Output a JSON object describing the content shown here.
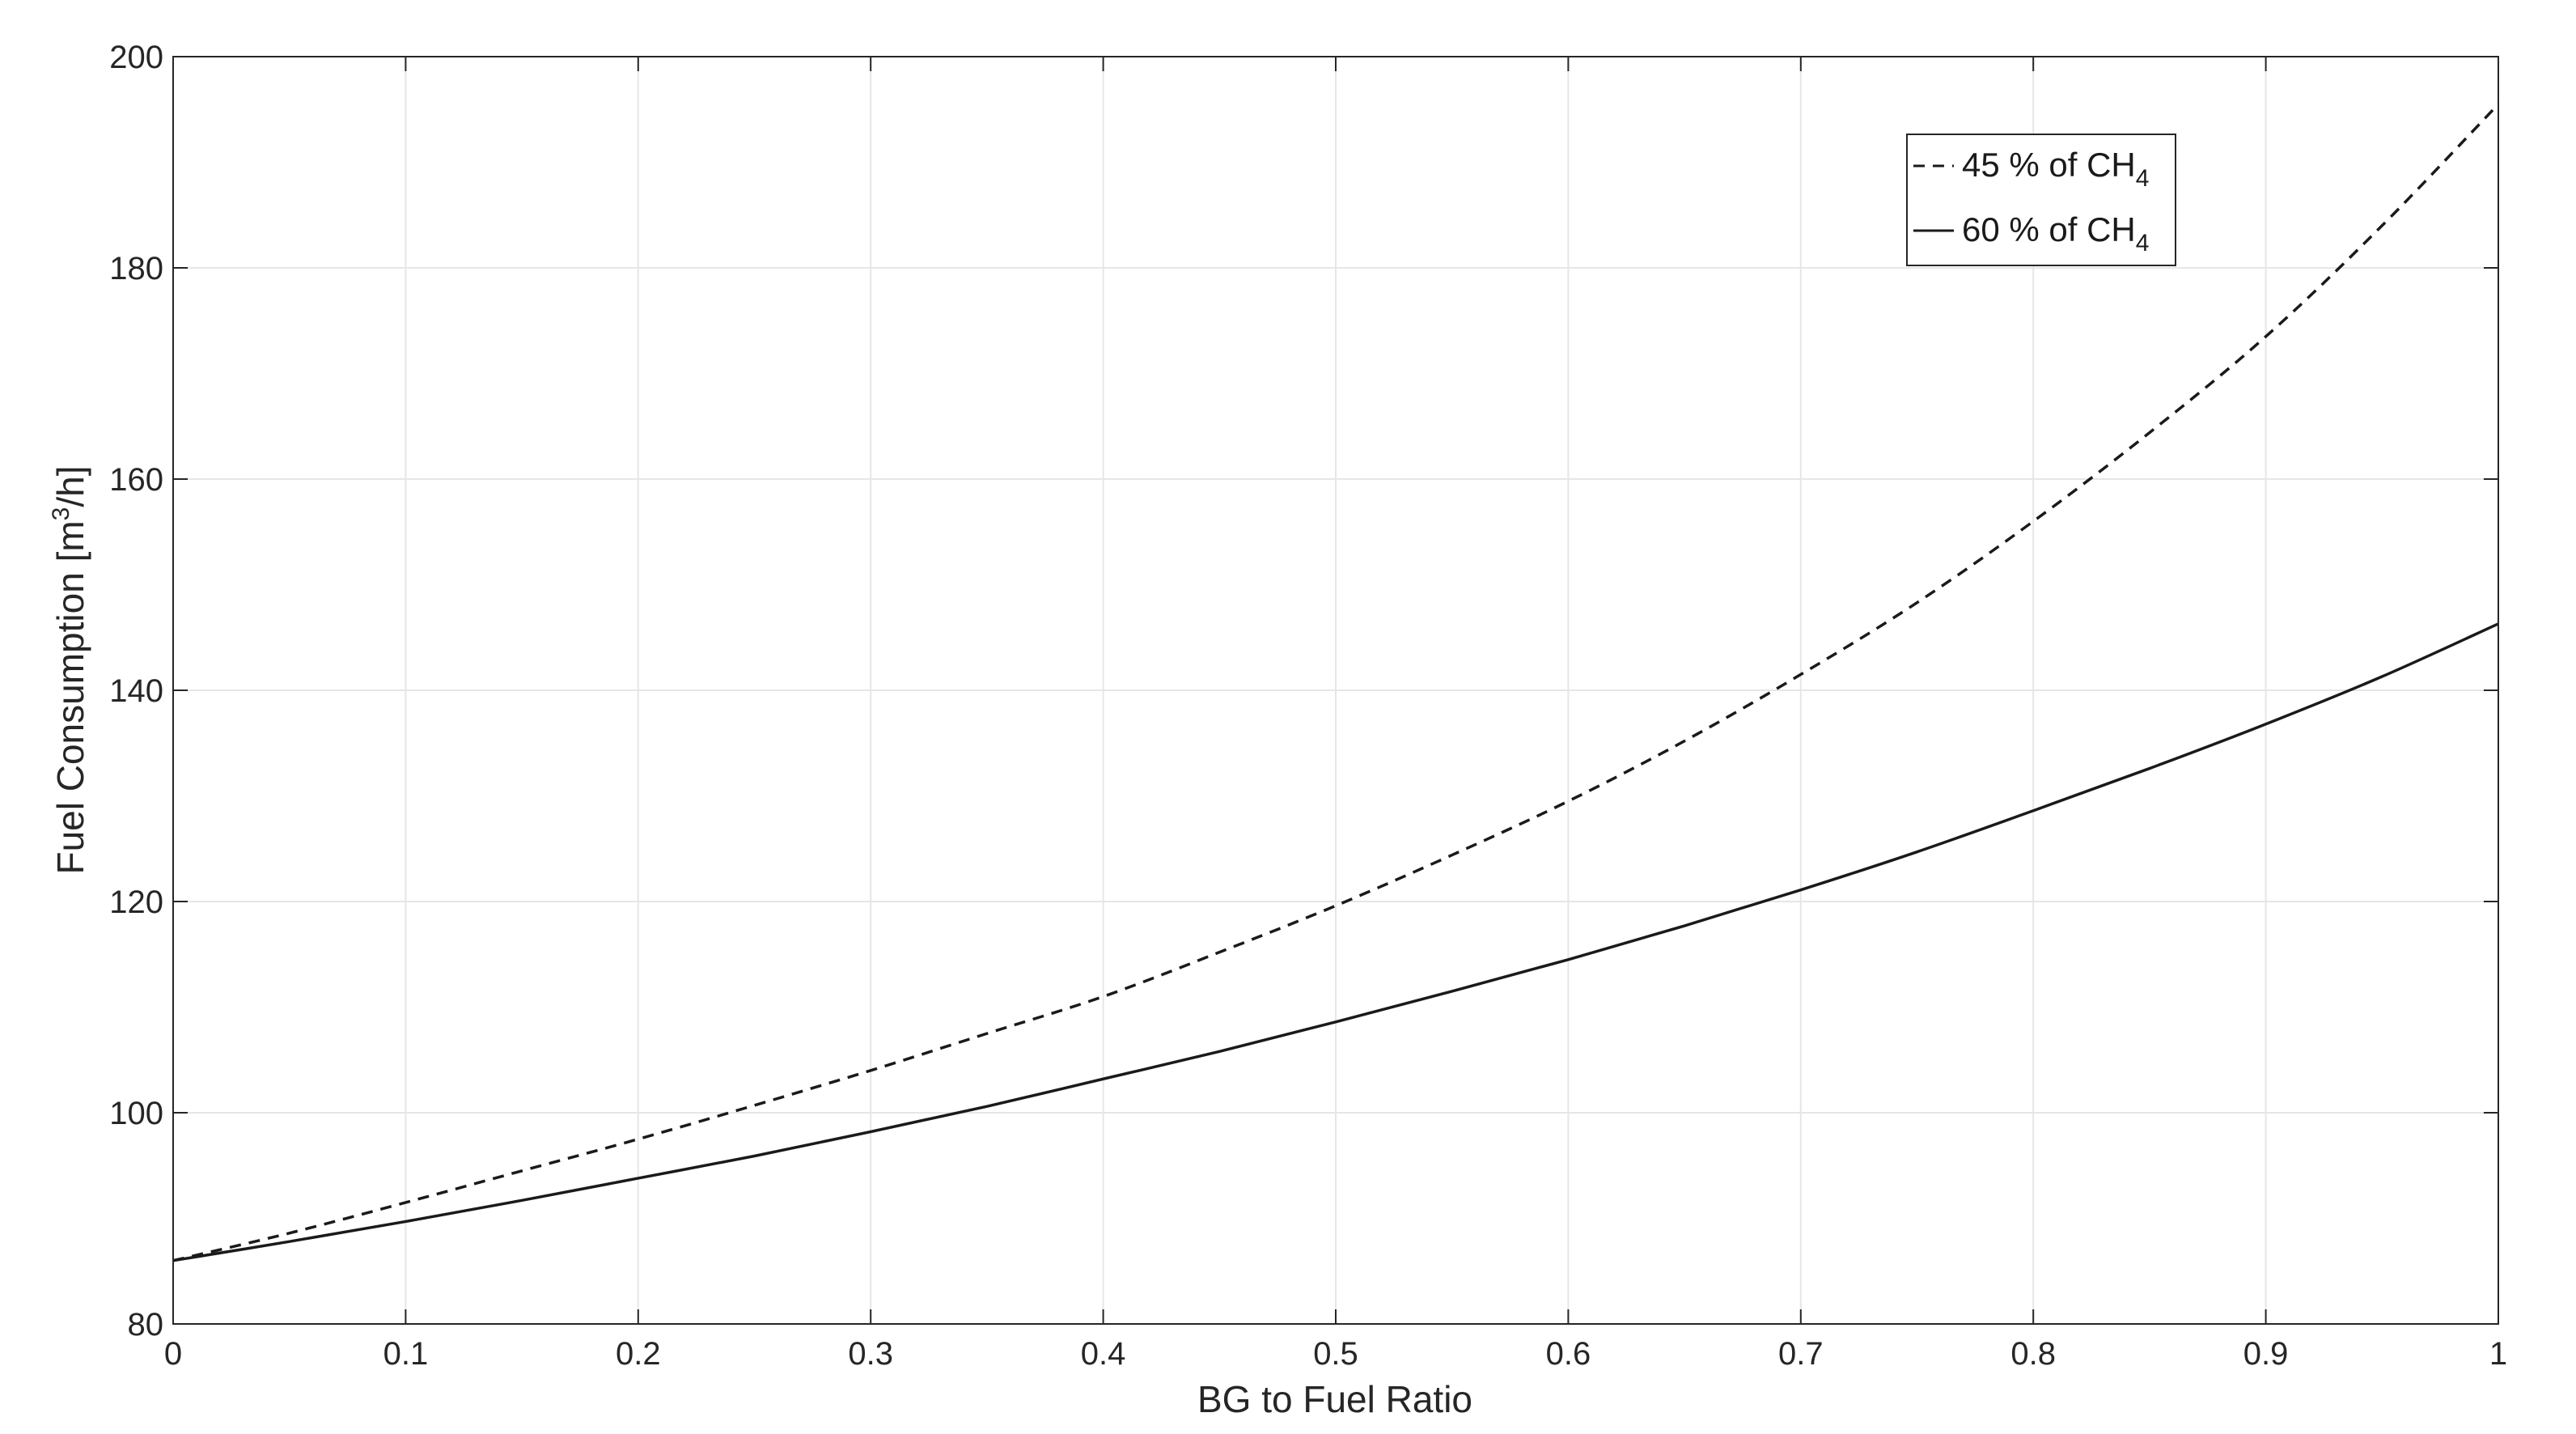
{
  "chart_data": {
    "type": "line",
    "xlabel": "BG to Fuel Ratio",
    "ylabel_parts": [
      "Fuel Consumption [m",
      "3",
      "/h]"
    ],
    "xlim": [
      0,
      1
    ],
    "ylim": [
      80,
      200
    ],
    "x_ticks": [
      0,
      0.1,
      0.2,
      0.3,
      0.4,
      0.5,
      0.6,
      0.7,
      0.8,
      0.9,
      1
    ],
    "x_tick_labels": [
      "0",
      "0.1",
      "0.2",
      "0.3",
      "0.4",
      "0.5",
      "0.6",
      "0.7",
      "0.8",
      "0.9",
      "1"
    ],
    "y_ticks": [
      80,
      100,
      120,
      140,
      160,
      180,
      200
    ],
    "y_tick_labels": [
      "80",
      "100",
      "120",
      "140",
      "160",
      "180",
      "200"
    ],
    "grid": true,
    "legend_position": "top-right",
    "x": [
      0,
      0.05,
      0.1,
      0.15,
      0.2,
      0.25,
      0.3,
      0.35,
      0.4,
      0.45,
      0.5,
      0.55,
      0.6,
      0.65,
      0.7,
      0.75,
      0.8,
      0.85,
      0.9,
      0.95,
      1
    ],
    "series": [
      {
        "legend_parts": [
          "45 % of CH",
          "4"
        ],
        "style": "dashed",
        "color": "#1a1a1a",
        "values": [
          86,
          88.6,
          91.5,
          94.5,
          97.5,
          100.7,
          104.0,
          107.5,
          111.0,
          115.2,
          119.6,
          124.4,
          129.5,
          135.2,
          141.5,
          148.3,
          156.0,
          164.4,
          173.5,
          184.0,
          195.5
        ]
      },
      {
        "legend_parts": [
          "60 % of CH",
          "4"
        ],
        "style": "solid",
        "color": "#1a1a1a",
        "values": [
          86,
          87.8,
          89.7,
          91.7,
          93.8,
          95.9,
          98.2,
          100.6,
          103.2,
          105.8,
          108.6,
          111.5,
          114.5,
          117.7,
          121.1,
          124.7,
          128.6,
          132.6,
          136.8,
          141.3,
          146.3
        ]
      }
    ]
  }
}
